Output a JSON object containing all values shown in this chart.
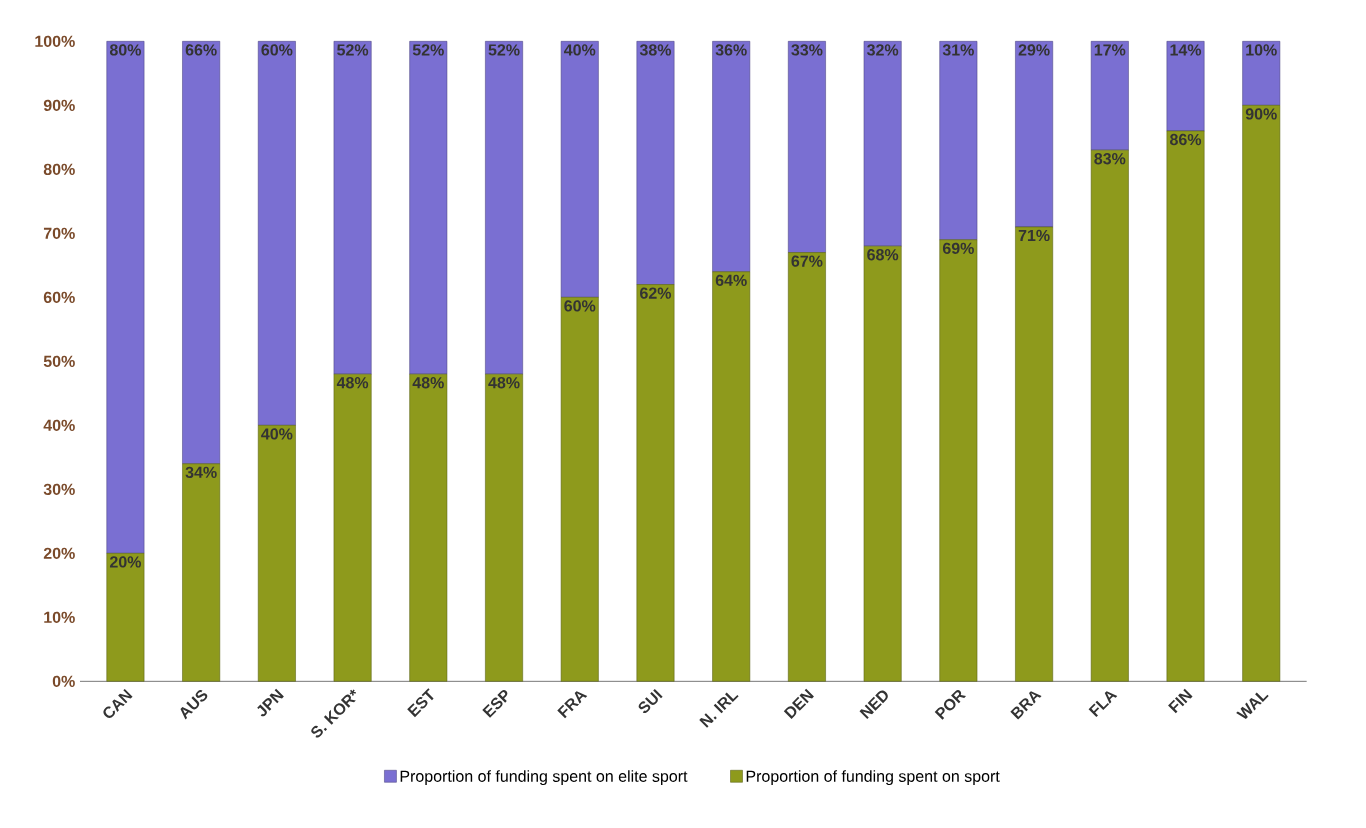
{
  "chart_data": {
    "type": "bar",
    "stacked": true,
    "categories": [
      "CAN",
      "AUS",
      "JPN",
      "S. KOR*",
      "EST",
      "ESP",
      "FRA",
      "SUI",
      "N. IRL",
      "DEN",
      "NED",
      "POR",
      "BRA",
      "FLA",
      "FIN",
      "WAL"
    ],
    "series": [
      {
        "name": "Proportion of funding spent on sport",
        "color": "#8e9a1c",
        "values": [
          20,
          34,
          40,
          48,
          48,
          48,
          60,
          62,
          64,
          67,
          68,
          69,
          71,
          83,
          86,
          90
        ],
        "value_labels": [
          "20%",
          "34%",
          "40%",
          "48%",
          "48%",
          "48%",
          "60%",
          "62%",
          "64%",
          "67%",
          "68%",
          "69%",
          "71%",
          "83%",
          "86%",
          "90%"
        ]
      },
      {
        "name": "Proportion of funding spent on elite sport",
        "color": "#7a6fd2",
        "values": [
          80,
          66,
          60,
          52,
          52,
          52,
          40,
          38,
          36,
          33,
          32,
          31,
          29,
          17,
          14,
          10
        ],
        "value_labels": [
          "80%",
          "66%",
          "60%",
          "52%",
          "52%",
          "52%",
          "40%",
          "38%",
          "36%",
          "33%",
          "32%",
          "31%",
          "29%",
          "17%",
          "14%",
          "10%"
        ]
      }
    ],
    "ylim": [
      0,
      100
    ],
    "yticks": [
      {
        "value": 0,
        "label": "0%"
      },
      {
        "value": 10,
        "label": "10%"
      },
      {
        "value": 20,
        "label": "20%"
      },
      {
        "value": 30,
        "label": "30%"
      },
      {
        "value": 40,
        "label": "40%"
      },
      {
        "value": 50,
        "label": "50%"
      },
      {
        "value": 60,
        "label": "60%"
      },
      {
        "value": 70,
        "label": "70%"
      },
      {
        "value": 80,
        "label": "80%"
      },
      {
        "value": 90,
        "label": "90%"
      },
      {
        "value": 100,
        "label": "100%"
      }
    ],
    "legend": "bottom"
  }
}
